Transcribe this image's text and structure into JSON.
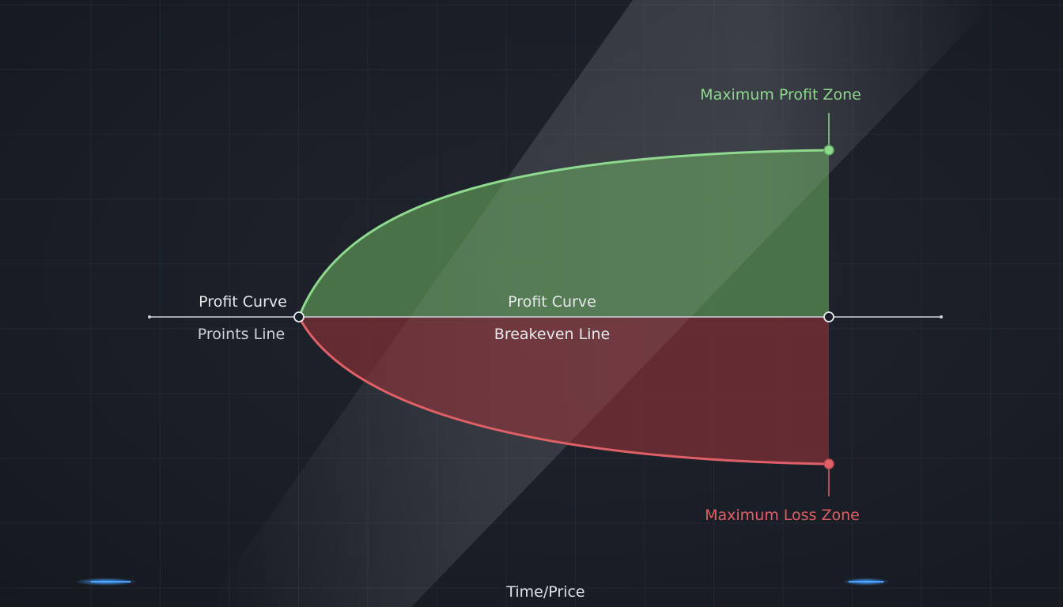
{
  "diagram": {
    "labels": {
      "max_profit_zone": "Maximum Profit Zone",
      "max_loss_zone": "Maximum Loss Zone",
      "profit_curve_left": "Profit Curve",
      "points_line": "Proints Line",
      "profit_curve_center": "Profit Curve",
      "breakeven_line": "Breakeven Line",
      "x_axis": "Time/Price"
    },
    "colors": {
      "background": "#1a1e26",
      "grid": "#2a303a",
      "profit_stroke": "#8fd98f",
      "profit_fill": "#4e7a4c",
      "loss_stroke": "#e06068",
      "loss_fill": "#6b2c33",
      "breakeven": "#cfd3da",
      "accent_glow": "#2f8cff"
    }
  }
}
